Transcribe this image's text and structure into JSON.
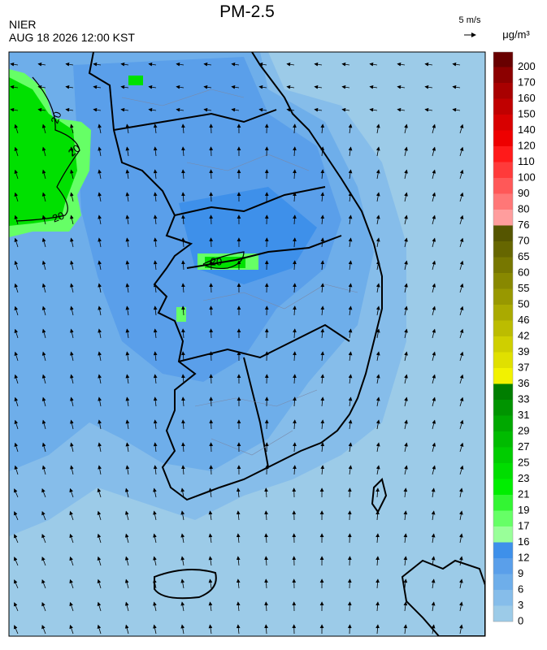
{
  "header": {
    "title": "PM-2.5",
    "agency": "NIER",
    "timestamp": "AUG 18 2026 12:00 KST",
    "wind_scale": "5 m/s"
  },
  "map": {
    "contour_labels": [
      "20",
      "20",
      "20",
      "20"
    ]
  },
  "legend": {
    "unit": "μg/m³",
    "levels": [
      0,
      3,
      6,
      9,
      12,
      16,
      17,
      19,
      21,
      23,
      25,
      27,
      29,
      31,
      33,
      36,
      37,
      39,
      42,
      46,
      50,
      55,
      60,
      65,
      70,
      76,
      80,
      90,
      100,
      110,
      120,
      140,
      150,
      160,
      170,
      200
    ],
    "colors": [
      "#9ccbe8",
      "#86bdea",
      "#6eaeea",
      "#5a9fea",
      "#3e90ea",
      "#99ff99",
      "#66ff66",
      "#33f533",
      "#00ee00",
      "#00dd00",
      "#00cc00",
      "#00bb00",
      "#00a800",
      "#009400",
      "#007e00",
      "#f2f200",
      "#e0e000",
      "#cfcf00",
      "#bcbc00",
      "#aaaa00",
      "#989800",
      "#888800",
      "#777700",
      "#666600",
      "#555500",
      "#ff9d9d",
      "#ff7777",
      "#ff5858",
      "#ff3a3a",
      "#ff1a1a",
      "#ee0000",
      "#d80000",
      "#c00000",
      "#a80000",
      "#8c0000",
      "#680000"
    ]
  }
}
